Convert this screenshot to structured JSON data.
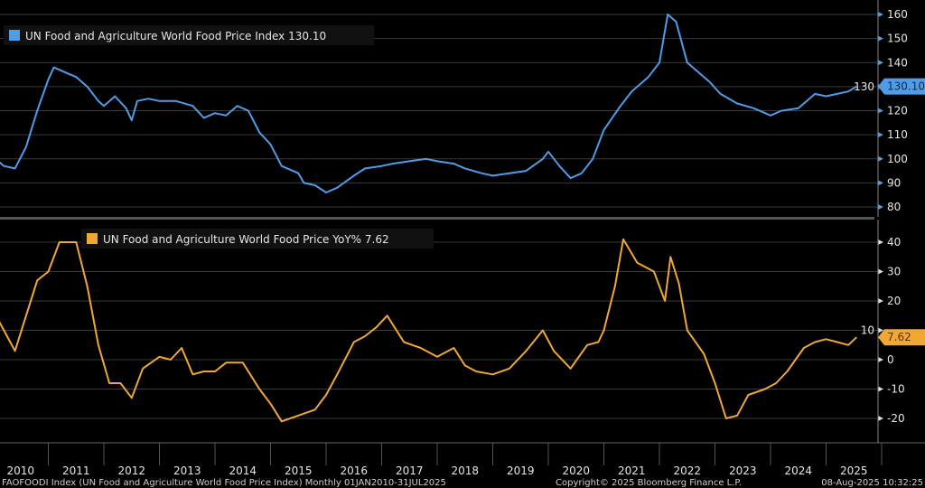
{
  "chart_data": [
    {
      "type": "line",
      "title": "UN Food and Agriculture World Food Price Index",
      "legend": "UN Food and Agriculture World Food Price Index 130.10",
      "last_value_label": "130.10",
      "color": "#4f9de8",
      "ylim": [
        77,
        165
      ],
      "yticks": [
        80,
        90,
        100,
        110,
        120,
        130,
        140,
        150,
        160
      ],
      "grid": true,
      "x": [
        2010.0,
        2010.2,
        2010.4,
        2010.6,
        2010.8,
        2011.0,
        2011.1,
        2011.3,
        2011.5,
        2011.7,
        2011.9,
        2012.0,
        2012.2,
        2012.4,
        2012.5,
        2012.6,
        2012.8,
        2013.0,
        2013.3,
        2013.6,
        2013.8,
        2014.0,
        2014.2,
        2014.4,
        2014.6,
        2014.8,
        2015.0,
        2015.2,
        2015.5,
        2015.6,
        2015.8,
        2016.0,
        2016.2,
        2016.5,
        2016.7,
        2017.0,
        2017.2,
        2017.5,
        2017.8,
        2018.0,
        2018.3,
        2018.5,
        2018.8,
        2019.0,
        2019.3,
        2019.6,
        2019.9,
        2020.0,
        2020.2,
        2020.4,
        2020.6,
        2020.8,
        2021.0,
        2021.3,
        2021.5,
        2021.8,
        2022.0,
        2022.15,
        2022.3,
        2022.5,
        2022.7,
        2022.9,
        2023.1,
        2023.4,
        2023.7,
        2024.0,
        2024.2,
        2024.5,
        2024.8,
        2025.0,
        2025.2,
        2025.4,
        2025.55
      ],
      "values": [
        101,
        97,
        96,
        105,
        120,
        133,
        138,
        136,
        134,
        130,
        124,
        122,
        126,
        121,
        116,
        124,
        125,
        124,
        124,
        122,
        117,
        119,
        118,
        122,
        120,
        111,
        106,
        97,
        94,
        90,
        89,
        86,
        88,
        93,
        96,
        97,
        98,
        99,
        100,
        99,
        98,
        96,
        94,
        93,
        94,
        95,
        100,
        103,
        97,
        92,
        94,
        100,
        112,
        122,
        128,
        134,
        140,
        160,
        157,
        140,
        136,
        132,
        127,
        123,
        121,
        118,
        120,
        121,
        127,
        126,
        127,
        128,
        130.1
      ]
    },
    {
      "type": "line",
      "title": "UN Food and Agriculture World Food Price YoY%",
      "legend": "UN Food and Agriculture World Food Price YoY% 7.62",
      "last_value_label": "7.62",
      "color": "#f0a834",
      "ylim": [
        -27,
        48
      ],
      "yticks": [
        -20,
        -10,
        0,
        10,
        20,
        30,
        40
      ],
      "grid": true,
      "x": [
        2010.0,
        2010.2,
        2010.4,
        2010.6,
        2010.8,
        2011.0,
        2011.2,
        2011.5,
        2011.7,
        2011.9,
        2012.1,
        2012.3,
        2012.5,
        2012.7,
        2013.0,
        2013.2,
        2013.4,
        2013.6,
        2013.8,
        2014.0,
        2014.2,
        2014.5,
        2014.8,
        2015.0,
        2015.2,
        2015.5,
        2015.8,
        2016.0,
        2016.2,
        2016.5,
        2016.7,
        2016.9,
        2017.1,
        2017.4,
        2017.7,
        2018.0,
        2018.3,
        2018.5,
        2018.7,
        2019.0,
        2019.3,
        2019.6,
        2019.9,
        2020.1,
        2020.4,
        2020.7,
        2020.9,
        2021.0,
        2021.2,
        2021.35,
        2021.6,
        2021.9,
        2022.1,
        2022.2,
        2022.35,
        2022.5,
        2022.8,
        2023.0,
        2023.2,
        2023.4,
        2023.6,
        2023.9,
        2024.1,
        2024.3,
        2024.6,
        2024.8,
        2025.0,
        2025.2,
        2025.4,
        2025.55
      ],
      "values": [
        17,
        10,
        3,
        15,
        27,
        30,
        40,
        40,
        25,
        5,
        -8,
        -8,
        -13,
        -3,
        1,
        0,
        4,
        -5,
        -4,
        -4,
        -1,
        -1,
        -10,
        -15,
        -21,
        -19,
        -17,
        -12,
        -5,
        6,
        8,
        11,
        15,
        6,
        4,
        1,
        4,
        -2,
        -4,
        -5,
        -3,
        3,
        10,
        3,
        -3,
        5,
        6,
        10,
        25,
        41,
        33,
        30,
        20,
        35,
        26,
        10,
        2,
        -8,
        -20,
        -19,
        -12,
        -10,
        -8,
        -4,
        4,
        6,
        7,
        6,
        5,
        7.62
      ]
    }
  ],
  "x_axis": {
    "tick_labels": [
      "2010",
      "2011",
      "2012",
      "2013",
      "2014",
      "2015",
      "2016",
      "2017",
      "2018",
      "2019",
      "2020",
      "2021",
      "2022",
      "2023",
      "2024",
      "2025"
    ]
  },
  "footer": {
    "source": "FAOFOODI Index (UN Food and Agriculture World Food Price Index)  Monthly 01JAN2010-31JUL2025",
    "copyright": "Copyright© 2025 Bloomberg Finance L.P.",
    "timestamp": "08-Aug-2025 10:32:25"
  }
}
